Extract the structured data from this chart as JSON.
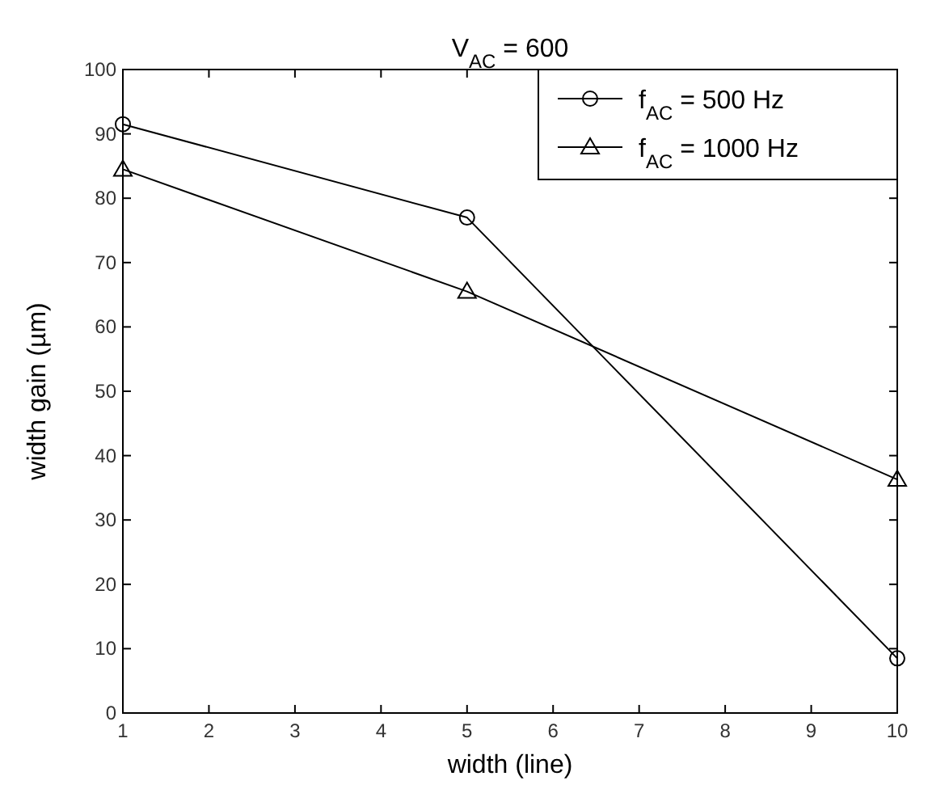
{
  "chart_data": {
    "type": "line",
    "title": "V$_{AC}$ = 600",
    "xlabel": "width (line)",
    "ylabel": "width gain (µm)",
    "x": [
      1,
      5,
      10
    ],
    "series": [
      {
        "name": "f$_{AC}$ = 500 Hz",
        "color": "#000000",
        "marker": "circle",
        "values": [
          91.5,
          77,
          8.5
        ]
      },
      {
        "name": "f$_{AC}$ = 1000 Hz",
        "color": "#000000",
        "marker": "triangle",
        "values": [
          84.5,
          65.5,
          36.3
        ]
      }
    ],
    "xlim": [
      1,
      10
    ],
    "xticks": [
      1,
      2,
      3,
      4,
      5,
      6,
      7,
      8,
      9,
      10
    ],
    "ylim": [
      0,
      100
    ],
    "yticks": [
      0,
      10,
      20,
      30,
      40,
      50,
      60,
      70,
      80,
      90,
      100
    ],
    "grid": false,
    "legend": "top right",
    "line_style": "solid"
  }
}
